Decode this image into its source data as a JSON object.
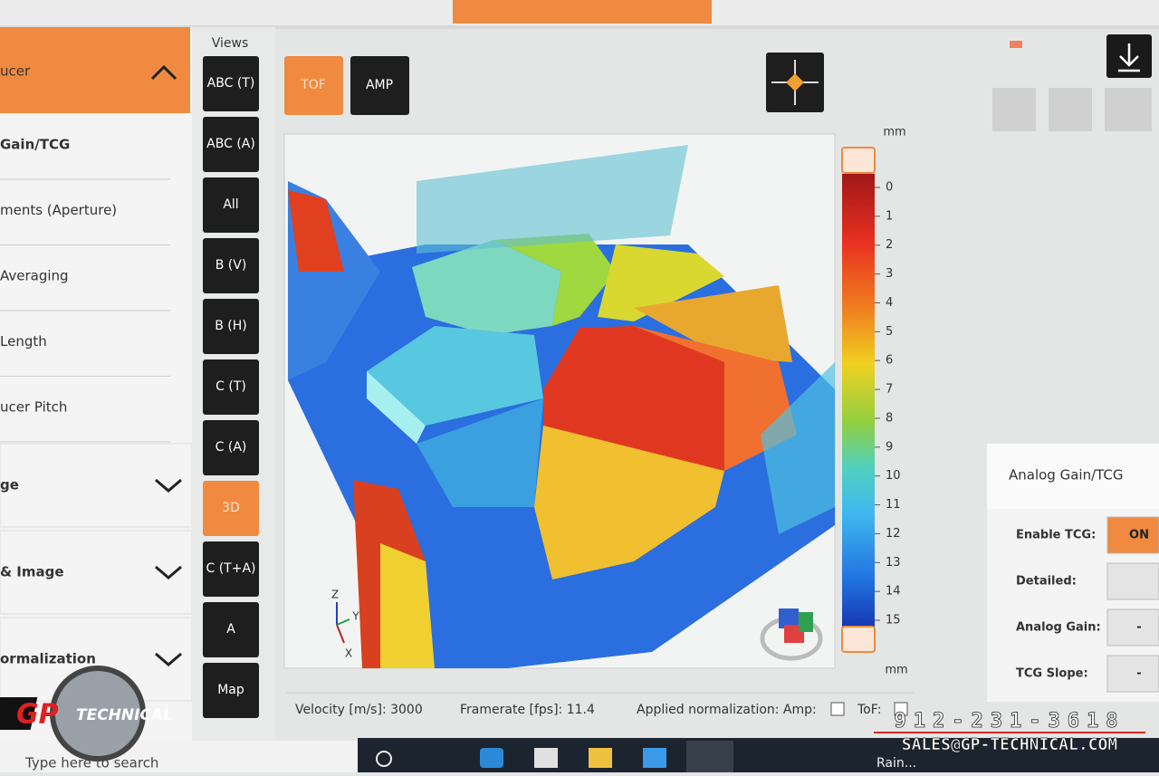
{
  "left_panel": {
    "header": "ucer",
    "items": [
      "Gain/TCG",
      "ments (Aperture)",
      "Averaging",
      "Length",
      "ucer Pitch"
    ],
    "sections": [
      "ge",
      "& Image",
      "ormalization"
    ]
  },
  "views": {
    "label": "Views",
    "buttons": [
      "ABC (T)",
      "ABC (A)",
      "All",
      "B (V)",
      "B (H)",
      "C (T)",
      "C (A)",
      "3D",
      "C (T+A)",
      "A",
      "Map"
    ],
    "active": "3D"
  },
  "mode_buttons": [
    "TOF",
    "AMP"
  ],
  "active_mode": "TOF",
  "plot": {
    "axes": [
      "Z",
      "Y",
      "X"
    ],
    "colorbar": {
      "unit_top": "mm",
      "unit_bottom": "mm",
      "ticks": [
        0,
        1,
        2,
        3,
        4,
        5,
        6,
        7,
        8,
        9,
        10,
        11,
        12,
        13,
        14,
        15
      ]
    }
  },
  "status": {
    "velocity": "Velocity [m/s]: 3000",
    "framerate": "Framerate [fps]: 11.4",
    "normalization": "Applied normalization: Amp:",
    "tof": "ToF:"
  },
  "right_panel": {
    "title": "Analog Gain/TCG",
    "rows": [
      {
        "label": "Enable TCG:",
        "value": "ON"
      },
      {
        "label": "Detailed:"
      },
      {
        "label": "Analog Gain:",
        "value": "-"
      },
      {
        "label": "TCG Slope:",
        "value": "-"
      }
    ]
  },
  "taskbar": {
    "search": "Type here to search",
    "weather": "Rain..."
  },
  "watermark": {
    "brand_gp": "GP",
    "brand_name": "TECHNICAL",
    "phone": "912-231-3618",
    "email": "SALES@GP-TECHNICAL.COM"
  }
}
